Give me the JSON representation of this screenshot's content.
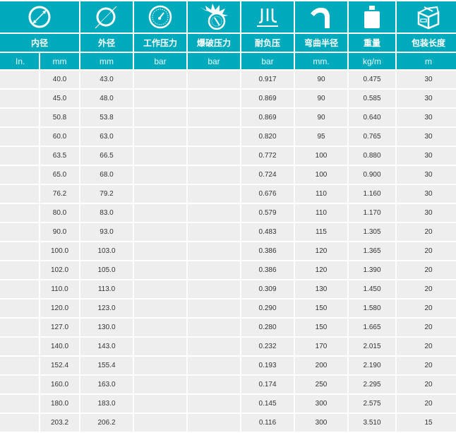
{
  "header": {
    "columns": [
      {
        "icon": "inner-diameter-icon",
        "label": "内径"
      },
      {
        "icon": "outer-diameter-icon",
        "label": "外径"
      },
      {
        "icon": "pressure-gauge-icon",
        "label": "工作压力"
      },
      {
        "icon": "burst-pressure-icon",
        "label": "爆破压力"
      },
      {
        "icon": "vacuum-icon",
        "label": "耐负压"
      },
      {
        "icon": "bend-radius-icon",
        "label": "弯曲半径"
      },
      {
        "icon": "weight-icon",
        "label": "重量"
      },
      {
        "icon": "package-box-icon",
        "label": "包装长度"
      }
    ],
    "units": [
      "In.",
      "mm",
      "mm",
      "bar",
      "bar",
      "bar",
      "mm.",
      "kg/m",
      "m"
    ]
  },
  "colors": {
    "header_bg": "#00aabd",
    "row_bg": "#eeeeee"
  },
  "rows": [
    [
      "",
      "40.0",
      "43.0",
      "",
      "",
      "0.917",
      "90",
      "0.475",
      "30"
    ],
    [
      "",
      "45.0",
      "48.0",
      "",
      "",
      "0.869",
      "90",
      "0.585",
      "30"
    ],
    [
      "",
      "50.8",
      "53.8",
      "",
      "",
      "0.869",
      "90",
      "0.640",
      "30"
    ],
    [
      "",
      "60.0",
      "63.0",
      "",
      "",
      "0.820",
      "95",
      "0.765",
      "30"
    ],
    [
      "",
      "63.5",
      "66.5",
      "",
      "",
      "0.772",
      "100",
      "0.880",
      "30"
    ],
    [
      "",
      "65.0",
      "68.0",
      "",
      "",
      "0.724",
      "100",
      "0.900",
      "30"
    ],
    [
      "",
      "76.2",
      "79.2",
      "",
      "",
      "0.676",
      "110",
      "1.160",
      "30"
    ],
    [
      "",
      "80.0",
      "83.0",
      "",
      "",
      "0.579",
      "110",
      "1.170",
      "30"
    ],
    [
      "",
      "90.0",
      "93.0",
      "",
      "",
      "0.483",
      "115",
      "1.305",
      "20"
    ],
    [
      "",
      "100.0",
      "103.0",
      "",
      "",
      "0.386",
      "120",
      "1.365",
      "20"
    ],
    [
      "",
      "102.0",
      "105.0",
      "",
      "",
      "0.386",
      "120",
      "1.390",
      "20"
    ],
    [
      "",
      "110.0",
      "113.0",
      "",
      "",
      "0.309",
      "130",
      "1.450",
      "20"
    ],
    [
      "",
      "120.0",
      "123.0",
      "",
      "",
      "0.290",
      "150",
      "1.580",
      "20"
    ],
    [
      "",
      "127.0",
      "130.0",
      "",
      "",
      "0.280",
      "150",
      "1.665",
      "20"
    ],
    [
      "",
      "140.0",
      "143.0",
      "",
      "",
      "0.232",
      "170",
      "2.015",
      "20"
    ],
    [
      "",
      "152.4",
      "155.4",
      "",
      "",
      "0.193",
      "200",
      "2.190",
      "20"
    ],
    [
      "",
      "160.0",
      "163.0",
      "",
      "",
      "0.174",
      "250",
      "2.295",
      "20"
    ],
    [
      "",
      "180.0",
      "183.0",
      "",
      "",
      "0.145",
      "300",
      "2.575",
      "20"
    ],
    [
      "",
      "203.2",
      "206.2",
      "",
      "",
      "0.116",
      "300",
      "3.510",
      "15"
    ]
  ]
}
